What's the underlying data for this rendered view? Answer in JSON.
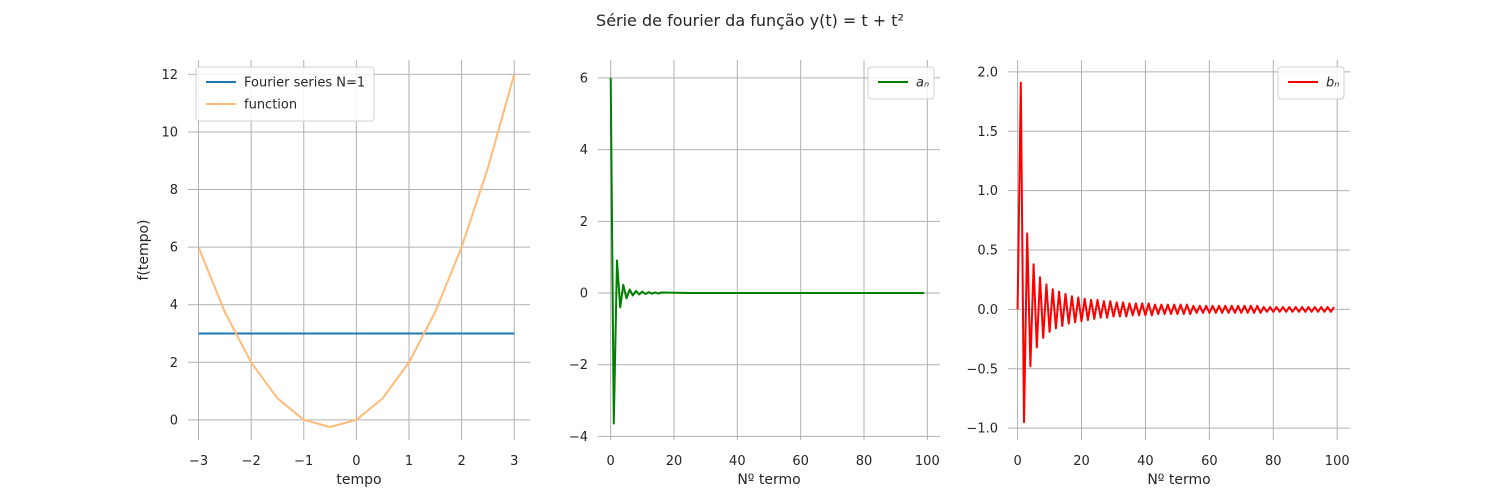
{
  "figure": {
    "title": "Série de fourier da função y(t) = t + t²"
  },
  "chart_data": [
    {
      "type": "line",
      "xlabel": "tempo",
      "ylabel": "f(tempo)",
      "xlim": [
        -3.2,
        3.3
      ],
      "ylim": [
        -0.7,
        12.5
      ],
      "xticks": [
        -3,
        -2,
        -1,
        0,
        1,
        2,
        3
      ],
      "xtick_labels": [
        "−3",
        "−2",
        "−1",
        "0",
        "1",
        "2",
        "3"
      ],
      "yticks": [
        0,
        2,
        4,
        6,
        8,
        10,
        12
      ],
      "ytick_labels": [
        "0",
        "2",
        "4",
        "6",
        "8",
        "10",
        "12"
      ],
      "grid": true,
      "legend": "upper-left",
      "series": [
        {
          "name": "Fourier series N=1",
          "color": "#1f77b4",
          "x": [
            -3,
            3
          ],
          "y": [
            3,
            3
          ]
        },
        {
          "name": "function",
          "color": "#ffbb78",
          "x": [
            -3,
            -2.5,
            -2,
            -1.5,
            -1,
            -0.5,
            0,
            0.5,
            1,
            1.5,
            2,
            2.5,
            3
          ],
          "y": [
            6,
            3.75,
            2,
            0.75,
            0,
            -0.25,
            0,
            0.75,
            2,
            3.75,
            6,
            8.75,
            12
          ]
        }
      ]
    },
    {
      "type": "line",
      "xlabel": "Nº termo",
      "ylabel": "",
      "xlim": [
        -4,
        104
      ],
      "ylim": [
        -4.1,
        6.5
      ],
      "xticks": [
        0,
        20,
        40,
        60,
        80,
        100
      ],
      "xtick_labels": [
        "0",
        "20",
        "40",
        "60",
        "80",
        "100"
      ],
      "yticks": [
        -4,
        -2,
        0,
        2,
        4,
        6
      ],
      "ytick_labels": [
        "−4",
        "−2",
        "0",
        "2",
        "4",
        "6"
      ],
      "grid": true,
      "legend": "upper-right",
      "series": [
        {
          "name": "aₙ",
          "color": "#008000",
          "x": [
            0,
            1,
            2,
            3,
            4,
            5,
            6,
            7,
            8,
            9,
            10,
            11,
            12,
            13,
            14,
            15,
            16,
            18,
            20,
            25,
            30,
            40,
            50,
            60,
            70,
            80,
            90,
            99
          ],
          "y": [
            6,
            -3.64,
            0.91,
            -0.4,
            0.23,
            -0.15,
            0.1,
            -0.07,
            0.06,
            -0.04,
            0.04,
            -0.03,
            0.025,
            -0.02,
            0.018,
            -0.016,
            0.014,
            0.011,
            0.009,
            0,
            0,
            0,
            0,
            0,
            0,
            0,
            0,
            0
          ]
        }
      ]
    },
    {
      "type": "line",
      "xlabel": "Nº termo",
      "ylabel": "",
      "xlim": [
        -3,
        104
      ],
      "ylim": [
        -1.1,
        2.1
      ],
      "xticks": [
        0,
        20,
        40,
        60,
        80,
        100
      ],
      "xtick_labels": [
        "0",
        "20",
        "40",
        "60",
        "80",
        "100"
      ],
      "yticks": [
        -1.0,
        -0.5,
        0.0,
        0.5,
        1.0,
        1.5,
        2.0
      ],
      "ytick_labels": [
        "−1.0",
        "−0.5",
        "0.0",
        "0.5",
        "1.0",
        "1.5",
        "2.0"
      ],
      "grid": true,
      "legend": "upper-right",
      "series": [
        {
          "name": "bₙ",
          "color": "#ff0000",
          "x": [
            0,
            1,
            2,
            3,
            4,
            5,
            6,
            7,
            8,
            9,
            10,
            11,
            12,
            13,
            14,
            15,
            16,
            17,
            18,
            19,
            20,
            21,
            22,
            23,
            24,
            25,
            26,
            27,
            28,
            29,
            30,
            31,
            32,
            33,
            34,
            35,
            36,
            37,
            38,
            39,
            40,
            41,
            42,
            43,
            44,
            45,
            46,
            47,
            48,
            49,
            50,
            51,
            52,
            53,
            54,
            55,
            56,
            57,
            58,
            59,
            60,
            61,
            62,
            63,
            64,
            65,
            66,
            67,
            68,
            69,
            70,
            71,
            72,
            73,
            74,
            75,
            76,
            77,
            78,
            79,
            80,
            81,
            82,
            83,
            84,
            85,
            86,
            87,
            88,
            89,
            90,
            91,
            92,
            93,
            94,
            95,
            96,
            97,
            98,
            99
          ],
          "y": [
            0,
            1.91,
            -0.95,
            0.64,
            -0.48,
            0.38,
            -0.32,
            0.27,
            -0.24,
            0.21,
            -0.19,
            0.17,
            -0.16,
            0.15,
            -0.14,
            0.13,
            -0.12,
            0.11,
            -0.11,
            0.1,
            -0.1,
            0.09,
            -0.09,
            0.08,
            -0.08,
            0.08,
            -0.07,
            0.07,
            -0.07,
            0.07,
            -0.06,
            0.06,
            -0.06,
            0.06,
            -0.06,
            0.05,
            -0.05,
            0.05,
            -0.05,
            0.05,
            -0.05,
            0.05,
            -0.05,
            0.04,
            -0.04,
            0.04,
            -0.04,
            0.04,
            -0.04,
            0.04,
            -0.04,
            0.04,
            -0.04,
            0.04,
            -0.04,
            0.03,
            -0.03,
            0.03,
            -0.03,
            0.03,
            -0.03,
            0.03,
            -0.03,
            0.03,
            -0.03,
            0.03,
            -0.03,
            0.03,
            -0.03,
            0.03,
            -0.03,
            0.03,
            -0.03,
            0.03,
            -0.03,
            0.03,
            -0.03,
            0.02,
            -0.02,
            0.02,
            -0.02,
            0.02,
            -0.02,
            0.02,
            -0.02,
            0.02,
            -0.02,
            0.02,
            -0.02,
            0.02,
            -0.02,
            0.02,
            -0.02,
            0.02,
            -0.02,
            0.02,
            -0.02,
            0.02,
            -0.02,
            0.02
          ]
        }
      ]
    }
  ]
}
